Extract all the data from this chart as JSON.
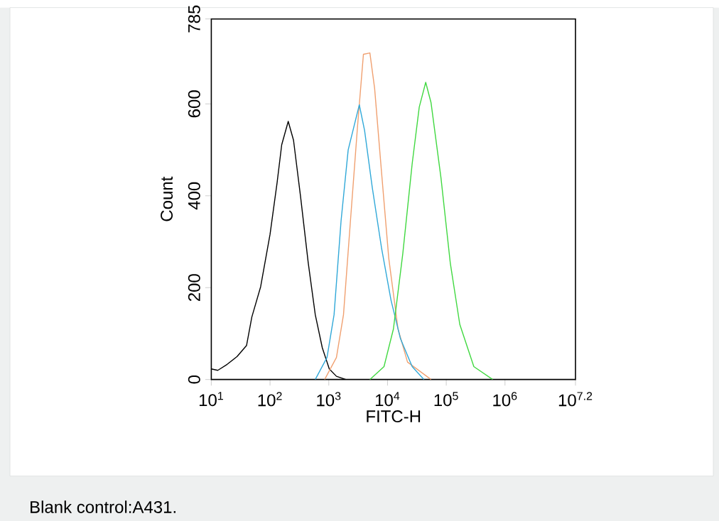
{
  "chart_data": {
    "type": "line",
    "xlabel": "FITC-H",
    "ylabel": "Count",
    "log": "x",
    "marker": "none",
    "annotations": [
      "Blank control:A431."
    ],
    "xlim": [
      10,
      15848932
    ],
    "ylim": [
      0,
      785
    ],
    "xticks": [
      {
        "value": 10,
        "label": "10$^{1}$"
      },
      {
        "value": 100,
        "label": "10$^{2}$"
      },
      {
        "value": 1000,
        "label": "10$^{3}$"
      },
      {
        "value": 10000,
        "label": "10$^{4}$"
      },
      {
        "value": 100000,
        "label": "10$^{5}$"
      },
      {
        "value": 1000000,
        "label": "10$^{6}$"
      },
      {
        "value": 15848932,
        "label": "10$^{7.2}$"
      }
    ],
    "yticks": [
      0,
      200,
      400,
      600,
      785
    ],
    "series": [
      {
        "color": "#000000",
        "x": [
          10,
          12.9,
          18.6,
          27.5,
          39.8,
          49,
          69.2,
          100,
          132,
          158,
          204,
          251,
          331,
          447,
          589,
          776,
          1020,
          1350,
          1950
        ],
        "values": [
          23,
          20,
          33,
          50,
          74,
          136,
          202,
          316,
          429,
          511,
          562,
          521,
          398,
          254,
          141,
          69,
          23,
          7,
          0
        ]
      },
      {
        "color": "#f0a070",
        "x": [
          851,
          1350,
          1780,
          2340,
          3090,
          3890,
          5010,
          6030,
          7940,
          10500,
          15100,
          21900,
          55000
        ],
        "values": [
          0,
          48,
          141,
          346,
          552,
          708,
          711,
          634,
          449,
          264,
          110,
          38,
          0
        ]
      },
      {
        "color": "#30a8d8",
        "x": [
          589,
          933,
          1230,
          1620,
          2140,
          3310,
          4070,
          5500,
          7940,
          11500,
          16600,
          26300,
          41700
        ],
        "values": [
          0,
          48,
          141,
          346,
          500,
          598,
          542,
          418,
          285,
          172,
          89,
          28,
          0
        ]
      },
      {
        "color": "#40d840",
        "x": [
          5010,
          8710,
          12600,
          18200,
          26300,
          34700,
          44700,
          55000,
          81300,
          117000,
          170000,
          295000,
          617000
        ],
        "values": [
          0,
          28,
          110,
          274,
          470,
          593,
          647,
          603,
          439,
          254,
          120,
          28,
          0
        ]
      }
    ]
  }
}
